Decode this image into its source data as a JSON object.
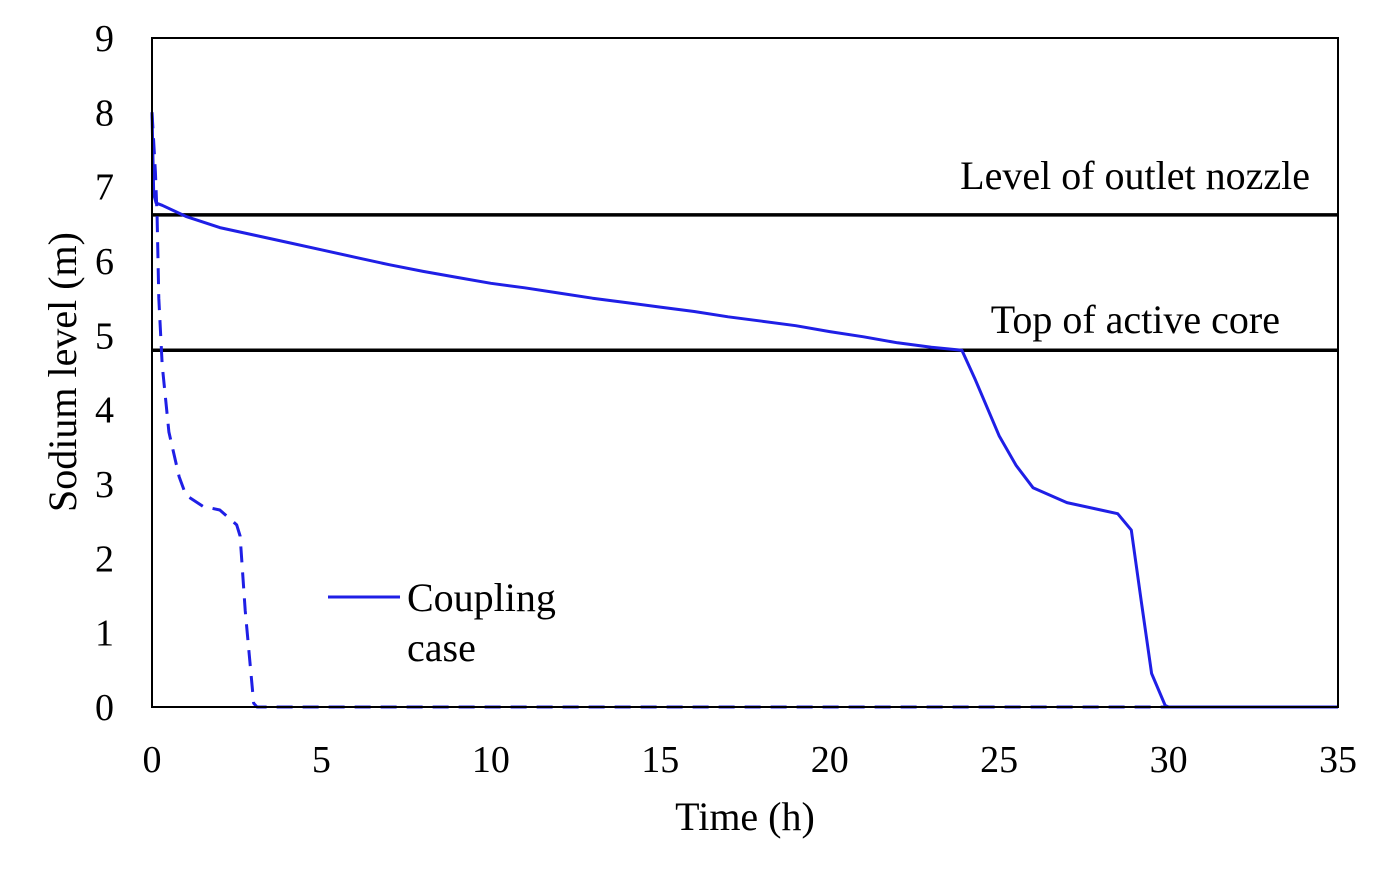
{
  "chart_data": {
    "type": "line",
    "title": "",
    "xlabel": "Time  (h)",
    "ylabel": "Sodium level (m)",
    "xlim": [
      0,
      35
    ],
    "ylim": [
      0,
      9
    ],
    "xticks": [
      0,
      5,
      10,
      15,
      20,
      25,
      30,
      35
    ],
    "yticks": [
      0,
      1,
      2,
      3,
      4,
      5,
      6,
      7,
      8,
      9
    ],
    "grid": false,
    "legend": {
      "placement": "lower-left",
      "entries": [
        {
          "label_line1": "Coupling",
          "label_line2": "case",
          "style": "solid"
        }
      ]
    },
    "colors": {
      "series": "#1f1fe6",
      "reference": "#000000",
      "axis": "#000000"
    },
    "reference_lines": [
      {
        "y": 6.62,
        "label": "Level  of outlet nozzle"
      },
      {
        "y": 4.8,
        "label": "Top  of active core"
      }
    ],
    "series": [
      {
        "style": "solid",
        "x": [
          0,
          0.05,
          0.12,
          0.3,
          1.0,
          2.0,
          3.0,
          4.0,
          5.0,
          6.0,
          7.0,
          8.0,
          9.0,
          10.0,
          11.0,
          12.0,
          13.0,
          14.0,
          15.0,
          16.0,
          17.0,
          18.0,
          19.0,
          20.0,
          21.0,
          22.0,
          23.0,
          23.9,
          24.3,
          25.0,
          25.5,
          26.0,
          27.0,
          28.0,
          28.5,
          28.9,
          29.2,
          29.5,
          29.9,
          30.0,
          35.0
        ],
        "values": [
          8.0,
          6.9,
          6.78,
          6.75,
          6.6,
          6.45,
          6.35,
          6.25,
          6.15,
          6.05,
          5.95,
          5.86,
          5.78,
          5.7,
          5.64,
          5.57,
          5.5,
          5.44,
          5.38,
          5.32,
          5.25,
          5.19,
          5.13,
          5.05,
          4.98,
          4.9,
          4.84,
          4.8,
          4.4,
          3.65,
          3.25,
          2.95,
          2.75,
          2.65,
          2.6,
          2.38,
          1.4,
          0.45,
          0.02,
          0,
          0
        ]
      },
      {
        "style": "dashed",
        "x": [
          0,
          0.1,
          0.15,
          0.2,
          0.3,
          0.5,
          0.8,
          1.0,
          1.5,
          2.0,
          2.5,
          2.6,
          2.75,
          3.0,
          3.1,
          35.0
        ],
        "values": [
          8.0,
          7.2,
          6.6,
          5.5,
          4.6,
          3.7,
          3.1,
          2.85,
          2.7,
          2.65,
          2.45,
          2.3,
          1.3,
          0.05,
          0,
          0
        ]
      }
    ]
  }
}
